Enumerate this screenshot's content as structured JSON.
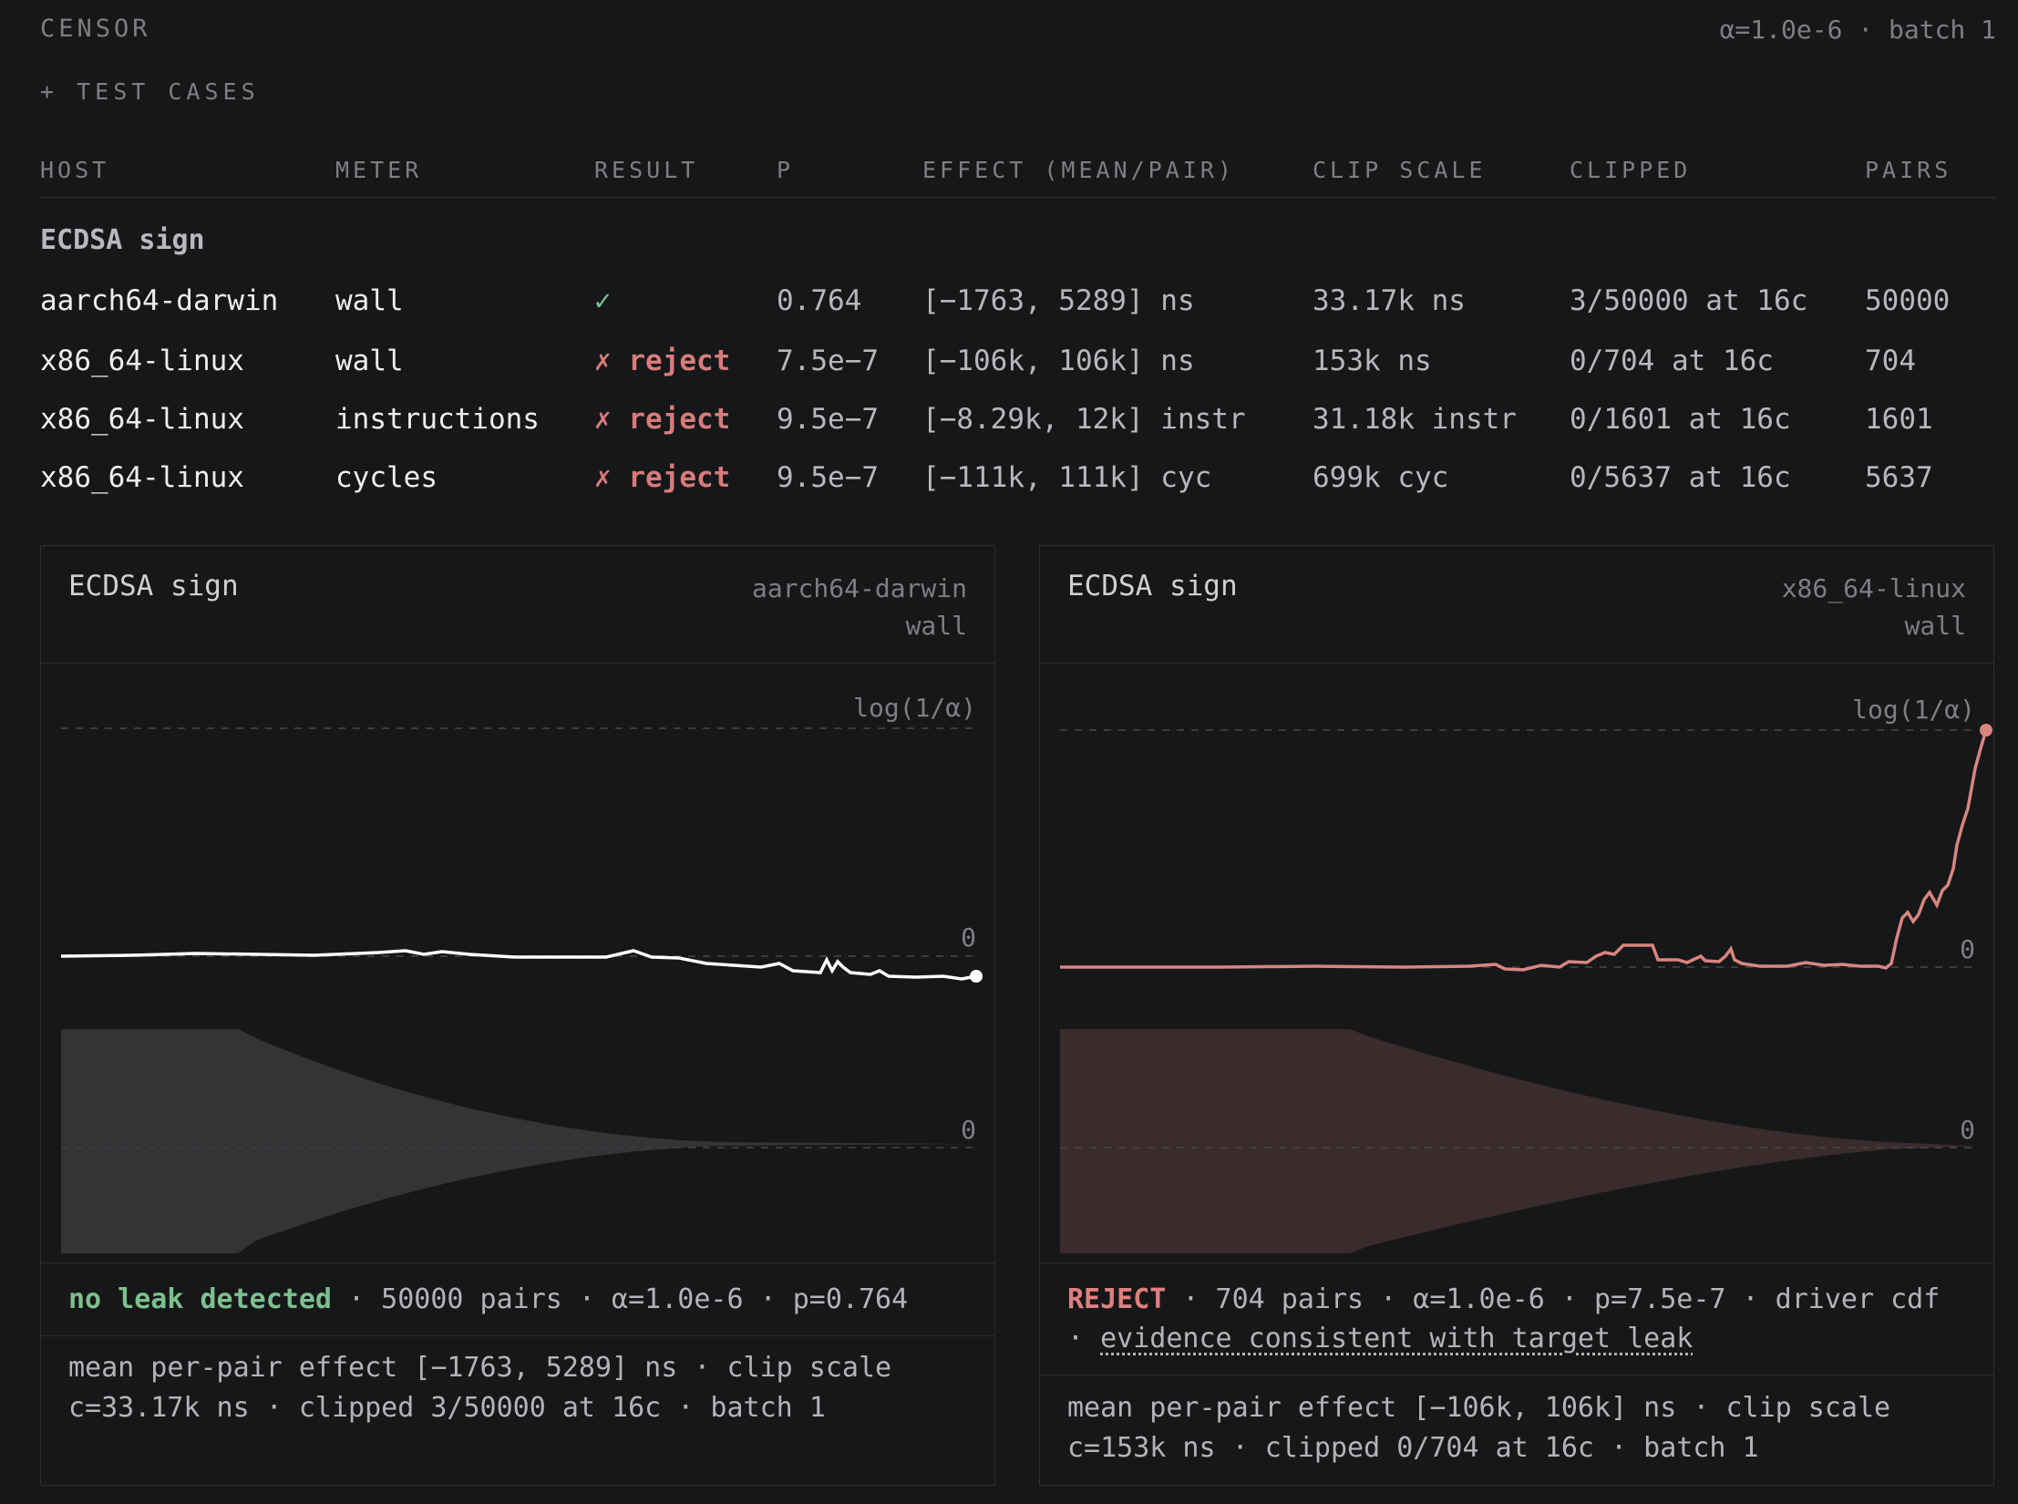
{
  "app": {
    "title": "CENSOR",
    "meta": "α=1.0e-6 · batch 1",
    "add_cases": "+ TEST CASES"
  },
  "table": {
    "headers": [
      "HOST",
      "METER",
      "RESULT",
      "P",
      "EFFECT (MEAN/PAIR)",
      "CLIP SCALE",
      "CLIPPED",
      "PAIRS"
    ],
    "group": "ECDSA sign",
    "rows": [
      {
        "host": "aarch64-darwin",
        "meter": "wall",
        "result": "✓",
        "result_kind": "pass",
        "p": "0.764",
        "effect": "[−1763, 5289] ns",
        "clip_scale": "33.17k ns",
        "clipped": "3/50000 at 16c",
        "pairs": "50000"
      },
      {
        "host": "x86_64-linux",
        "meter": "wall",
        "result": "✗ reject",
        "result_kind": "reject",
        "p": "7.5e−7",
        "effect": "[−106k, 106k] ns",
        "clip_scale": "153k ns",
        "clipped": "0/704 at 16c",
        "pairs": "704"
      },
      {
        "host": "x86_64-linux",
        "meter": "instructions",
        "result": "✗ reject",
        "result_kind": "reject",
        "p": "9.5e−7",
        "effect": "[−8.29k, 12k] instr",
        "clip_scale": "31.18k instr",
        "clipped": "0/1601 at 16c",
        "pairs": "1601"
      },
      {
        "host": "x86_64-linux",
        "meter": "cycles",
        "result": "✗ reject",
        "result_kind": "reject",
        "p": "9.5e−7",
        "effect": "[−111k, 111k] cyc",
        "clip_scale": "699k cyc",
        "clipped": "0/5637 at 16c",
        "pairs": "5637"
      }
    ]
  },
  "panels": [
    {
      "title": "ECDSA sign",
      "host": "aarch64-darwin",
      "meter": "wall",
      "status": "no leak detected",
      "summary": " · 50000 pairs · α=1.0e-6 · p=0.764",
      "evidence_link": "",
      "detail_line1": "mean per-pair effect [−1763, 5289] ns · clip scale",
      "detail_line2": "c=33.17k ns · clipped 3/50000 at 16c · batch 1",
      "threshold_label": "log(1/α)",
      "zero_label": "0",
      "band_zero_label": "0",
      "color": "#ffffff",
      "band_color": "#333436"
    },
    {
      "title": "ECDSA sign",
      "host": "x86_64-linux",
      "meter": "wall",
      "status": "REJECT",
      "summary": " · 704 pairs · α=1.0e-6 · p=7.5e-7 · driver cdf · ",
      "evidence_link": "evidence consistent with target leak",
      "detail_line1": "mean per-pair effect [−106k, 106k] ns · clip scale",
      "detail_line2": "c=153k ns · clipped 0/704 at 16c · batch 1",
      "threshold_label": "log(1/α)",
      "zero_label": "0",
      "band_zero_label": "0",
      "color": "#d9857f",
      "band_color": "#3a2c2c"
    }
  ],
  "chart_data": [
    {
      "type": "line",
      "title": "ECDSA sign",
      "series": [
        {
          "x": [
            0,
            0.1,
            0.2,
            0.3,
            0.4,
            0.5,
            0.6,
            0.7,
            0.8,
            0.84,
            0.87,
            0.9,
            0.95,
            1.0
          ],
          "values": [
            0,
            0.005,
            0.003,
            0.006,
            0.0,
            -0.005,
            0.003,
            -0.04,
            -0.05,
            -0.06,
            -0.03,
            -0.1,
            -0.1,
            -0.1
          ]
        }
      ],
      "reference_lines": [
        {
          "label": "log(1/α)",
          "value": 1
        },
        {
          "label": "0",
          "value": 0
        }
      ]
    },
    {
      "type": "line",
      "title": "ECDSA sign",
      "series": [
        {
          "x": [
            0,
            0.2,
            0.4,
            0.45,
            0.5,
            0.55,
            0.57,
            0.62,
            0.7,
            0.8,
            0.85,
            0.87,
            0.9,
            0.95,
            1.0
          ],
          "values": [
            0,
            0.0,
            0.0,
            0.01,
            -0.01,
            0.05,
            0.09,
            0.08,
            0.03,
            0.01,
            0.0,
            0.3,
            0.35,
            0.65,
            1.0
          ]
        }
      ],
      "reference_lines": [
        {
          "label": "log(1/α)",
          "value": 1
        },
        {
          "label": "0",
          "value": 0
        }
      ]
    }
  ]
}
